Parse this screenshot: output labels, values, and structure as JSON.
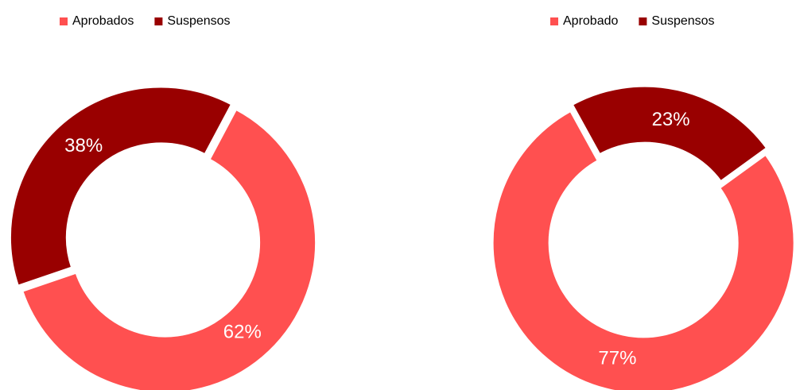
{
  "chart_data": [
    {
      "type": "donut",
      "categories": [
        "Aprobados",
        "Suspensos"
      ],
      "values": [
        62,
        38
      ],
      "value_labels": [
        "62%",
        "38%"
      ],
      "colors": [
        "#ff5050",
        "#990000"
      ],
      "legend": "top"
    },
    {
      "type": "donut",
      "categories": [
        "Aprobado",
        "Suspensos"
      ],
      "values": [
        77,
        23
      ],
      "value_labels": [
        "77%",
        "23%"
      ],
      "colors": [
        "#ff5050",
        "#990000"
      ],
      "legend": "top"
    }
  ]
}
